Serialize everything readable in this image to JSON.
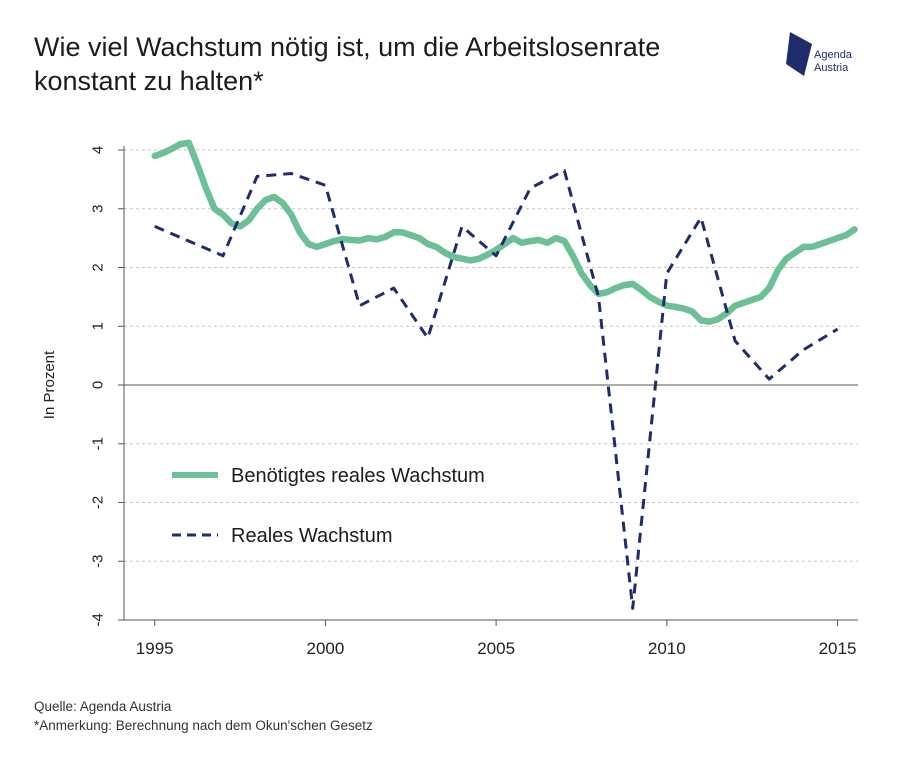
{
  "title": "Wie viel Wachstum nötig ist, um die Arbeitslosenrate konstant zu halten*",
  "logo": {
    "line1": "Agenda",
    "line2": "Austria",
    "color": "#1f2d6b"
  },
  "footer": {
    "source": "Quelle: Agenda Austria",
    "note": "*Anmerkung: Berechnung nach dem Okun'schen Gesetz"
  },
  "chart_data": {
    "type": "line",
    "ylabel": "In Prozent",
    "xlim": [
      1994.1,
      2015.6
    ],
    "ylim": [
      -4,
      4
    ],
    "x_ticks": [
      1995,
      2000,
      2005,
      2010,
      2015
    ],
    "y_ticks": [
      -4,
      -3,
      -2,
      -1,
      0,
      1,
      2,
      3,
      4
    ],
    "y_tick_labels": [
      "-4",
      "-3",
      "-2",
      "-1",
      "0",
      "1",
      "2",
      "3",
      "4"
    ],
    "x_tick_labels": [
      "1995",
      "2000",
      "2005",
      "2010",
      "2015"
    ],
    "grid": "horizontal dashed",
    "legend_position": "lower-left",
    "series": [
      {
        "name": "Benötigtes reales Wachstum",
        "style": "solid",
        "color": "#6dbf95",
        "x": [
          1995,
          1995.25,
          1995.5,
          1995.75,
          1996,
          1996.25,
          1996.5,
          1996.75,
          1997,
          1997.25,
          1997.5,
          1997.75,
          1998,
          1998.25,
          1998.5,
          1998.75,
          1999,
          1999.25,
          1999.5,
          1999.75,
          2000,
          2000.25,
          2000.5,
          2000.75,
          2001,
          2001.25,
          2001.5,
          2001.75,
          2002,
          2002.25,
          2002.5,
          2002.75,
          2003,
          2003.25,
          2003.5,
          2003.75,
          2004,
          2004.25,
          2004.5,
          2004.75,
          2005,
          2005.25,
          2005.5,
          2005.75,
          2006,
          2006.25,
          2006.5,
          2006.75,
          2007,
          2007.25,
          2007.5,
          2007.75,
          2008,
          2008.25,
          2008.5,
          2008.75,
          2009,
          2009.25,
          2009.5,
          2009.75,
          2010,
          2010.25,
          2010.5,
          2010.75,
          2011,
          2011.25,
          2011.5,
          2011.75,
          2012,
          2012.25,
          2012.5,
          2012.75,
          2013,
          2013.25,
          2013.5,
          2013.75,
          2014,
          2014.25,
          2014.5,
          2014.75,
          2015,
          2015.25,
          2015.5
        ],
        "values": [
          3.9,
          3.95,
          4.02,
          4.1,
          4.12,
          3.75,
          3.35,
          3.0,
          2.9,
          2.75,
          2.7,
          2.8,
          3.0,
          3.15,
          3.2,
          3.1,
          2.9,
          2.6,
          2.4,
          2.35,
          2.4,
          2.45,
          2.48,
          2.47,
          2.46,
          2.5,
          2.48,
          2.52,
          2.6,
          2.6,
          2.55,
          2.5,
          2.4,
          2.35,
          2.25,
          2.18,
          2.15,
          2.12,
          2.15,
          2.22,
          2.3,
          2.4,
          2.5,
          2.42,
          2.45,
          2.47,
          2.42,
          2.5,
          2.45,
          2.2,
          1.9,
          1.7,
          1.55,
          1.58,
          1.65,
          1.7,
          1.72,
          1.62,
          1.5,
          1.42,
          1.35,
          1.33,
          1.3,
          1.25,
          1.1,
          1.08,
          1.12,
          1.22,
          1.35,
          1.4,
          1.45,
          1.5,
          1.65,
          1.95,
          2.15,
          2.25,
          2.35,
          2.35,
          2.4,
          2.45,
          2.5,
          2.55,
          2.65
        ]
      },
      {
        "name": "Reales Wachstum",
        "style": "dashed",
        "color": "#1f2d6b",
        "x": [
          1995,
          1996,
          1997,
          1998,
          1999,
          2000,
          2001,
          2002,
          2003,
          2004,
          2005,
          2006,
          2007,
          2008,
          2009,
          2010,
          2011,
          2012,
          2013,
          2014,
          2015
        ],
        "values": [
          2.7,
          2.45,
          2.2,
          3.55,
          3.6,
          3.4,
          1.35,
          1.65,
          0.8,
          2.7,
          2.2,
          3.35,
          3.65,
          1.5,
          -3.8,
          1.9,
          2.85,
          0.75,
          0.1,
          0.6,
          0.95
        ]
      }
    ]
  }
}
